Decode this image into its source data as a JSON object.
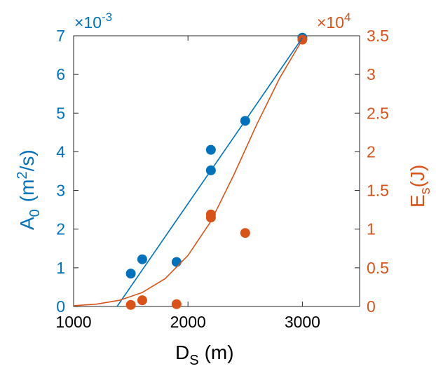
{
  "chart_data": {
    "type": "scatter",
    "x_axis": {
      "label_main": "D",
      "label_sub": "S",
      "label_unit": "(m)",
      "ticks": [
        1000,
        2000,
        3000
      ],
      "tick_labels": [
        "1000",
        "2000",
        "3000"
      ],
      "range": [
        1000,
        3500
      ]
    },
    "y_left": {
      "label_main": "A",
      "label_sub": "0",
      "label_unit_pre": "(m",
      "label_sup": "2",
      "label_unit_post": "/s)",
      "multiplier": "×10",
      "multiplier_exp": "-3",
      "ticks": [
        0,
        1,
        2,
        3,
        4,
        5,
        6,
        7
      ],
      "tick_labels": [
        "0",
        "1",
        "2",
        "3",
        "4",
        "5",
        "6",
        "7"
      ],
      "range": [
        0,
        7
      ],
      "color": "#0072BD"
    },
    "y_right": {
      "label_main": "E",
      "label_sub": "s",
      "label_unit": "(J)",
      "multiplier": "×10",
      "multiplier_exp": "4",
      "ticks": [
        0,
        0.5,
        1,
        1.5,
        2,
        2.5,
        3,
        3.5
      ],
      "tick_labels": [
        "0",
        "0.5",
        "1",
        "1.5",
        "2",
        "2.5",
        "3",
        "3.5"
      ],
      "range": [
        0,
        3.5
      ],
      "color": "#D95319"
    },
    "series": [
      {
        "axis": "left",
        "kind": "points",
        "color": "#0072BD",
        "x": [
          1500,
          1600,
          1900,
          2200,
          2200,
          2500,
          3000
        ],
        "y": [
          0.85,
          1.22,
          1.15,
          3.52,
          4.05,
          4.8,
          6.95
        ]
      },
      {
        "axis": "right",
        "kind": "points",
        "color": "#D95319",
        "x": [
          1500,
          1600,
          1900,
          2200,
          2200,
          2500,
          3000
        ],
        "y": [
          0.02,
          0.08,
          0.03,
          1.15,
          1.19,
          0.95,
          3.45
        ]
      },
      {
        "axis": "left",
        "kind": "fit-line",
        "color": "#0072BD",
        "x": [
          1380,
          3000
        ],
        "y": [
          0,
          6.95
        ]
      },
      {
        "axis": "right",
        "kind": "fit-curve",
        "color": "#D95319",
        "x": [
          1000,
          1200,
          1400,
          1600,
          1800,
          2000,
          2200,
          2400,
          2600,
          2800,
          3000
        ],
        "y": [
          0.01,
          0.03,
          0.08,
          0.18,
          0.36,
          0.66,
          1.1,
          1.7,
          2.35,
          2.95,
          3.45
        ]
      }
    ]
  }
}
